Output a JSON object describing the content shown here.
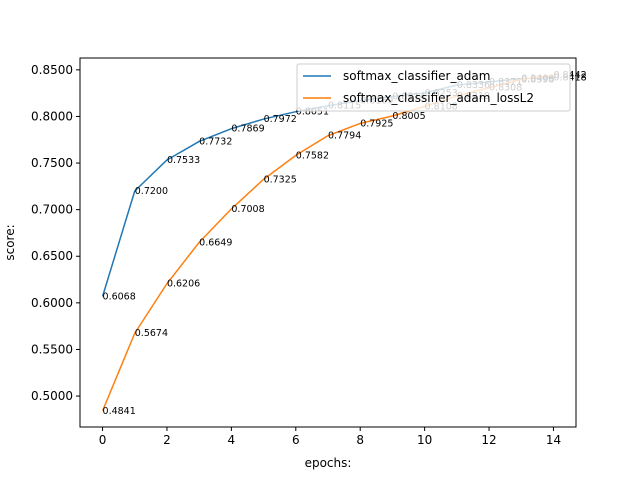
{
  "chart_data": {
    "type": "line",
    "title": "",
    "xlabel": "epochs:",
    "ylabel": "score:",
    "xlim": [
      -0.7,
      14.7
    ],
    "ylim": [
      0.4668,
      0.8627
    ],
    "xticks": [
      0,
      2,
      4,
      6,
      8,
      10,
      12,
      14
    ],
    "xtick_labels": [
      "0",
      "2",
      "4",
      "6",
      "8",
      "10",
      "12",
      "14"
    ],
    "yticks": [
      0.5,
      0.55,
      0.6,
      0.65,
      0.7,
      0.75,
      0.8,
      0.85
    ],
    "ytick_labels": [
      "0.5000",
      "0.5500",
      "0.6000",
      "0.6500",
      "0.7000",
      "0.7500",
      "0.8000",
      "0.8500"
    ],
    "grid": false,
    "legend_position": "top-right",
    "series": [
      {
        "name": "softmax_classifier_adam",
        "color": "#1f77b4",
        "x": [
          0,
          1,
          2,
          3,
          4,
          5,
          6,
          7,
          8,
          9,
          10,
          11,
          12,
          13,
          14
        ],
        "values": [
          0.6068,
          0.72,
          0.7533,
          0.7732,
          0.7869,
          0.7972,
          0.8051,
          0.8115,
          0.8169,
          0.8214,
          0.8253,
          0.8336,
          0.8371,
          0.8406,
          0.8418
        ],
        "labels": [
          "0.6068",
          "0.7200",
          "0.7533",
          "0.7732",
          "0.7869",
          "0.7972",
          "0.8051",
          "0.8115",
          "0.8169",
          "0.8214",
          "0.8253",
          "0.8336",
          "0.8371",
          "0.8406",
          "0.8418"
        ]
      },
      {
        "name": "softmax_classifier_adam_lossL2",
        "color": "#ff7f0e",
        "x": [
          0,
          1,
          2,
          3,
          4,
          5,
          6,
          7,
          8,
          9,
          10,
          11,
          12,
          13,
          14
        ],
        "values": [
          0.4841,
          0.5674,
          0.6206,
          0.6649,
          0.7008,
          0.7325,
          0.7582,
          0.7794,
          0.7925,
          0.8005,
          0.8108,
          0.8219,
          0.8308,
          0.8398,
          0.8442
        ],
        "labels": [
          "0.4841",
          "0.5674",
          "0.6206",
          "0.6649",
          "0.7008",
          "0.7325",
          "0.7582",
          "0.7794",
          "0.7925",
          "0.8005",
          "0.8108",
          "0.8219",
          "0.8308",
          "0.8398",
          "0.8442"
        ]
      }
    ]
  }
}
